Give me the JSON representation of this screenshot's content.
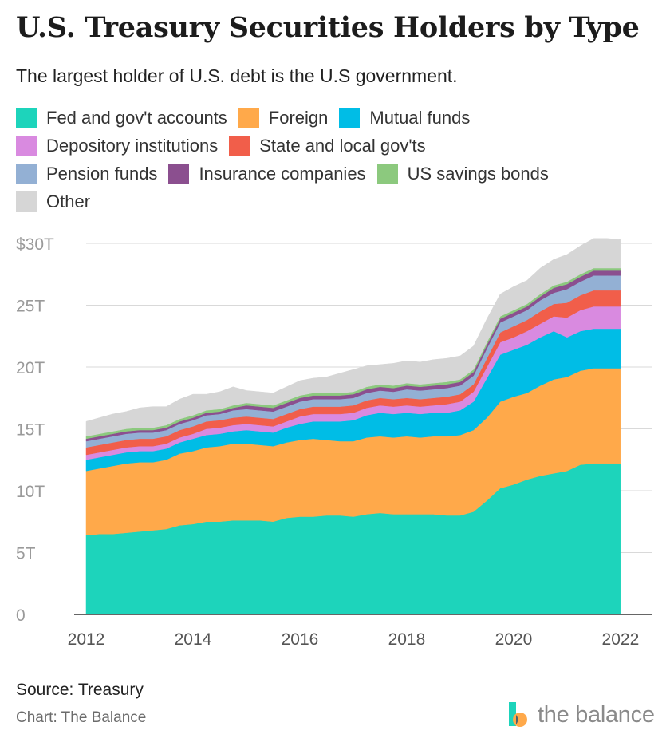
{
  "title": "U.S. Treasury Securities Holders by Type",
  "subtitle": "The largest holder of U.S. debt is the U.S government.",
  "legend": [
    {
      "label": "Fed and gov't accounts",
      "color": "#1dd4bb"
    },
    {
      "label": "Foreign",
      "color": "#ffa94a"
    },
    {
      "label": "Mutual funds",
      "color": "#00bde6"
    },
    {
      "label": "Depository institutions",
      "color": "#d98ae0"
    },
    {
      "label": "State and local gov'ts",
      "color": "#f15e4a"
    },
    {
      "label": "Pension funds",
      "color": "#93b0d4"
    },
    {
      "label": "Insurance companies",
      "color": "#8b4f8f"
    },
    {
      "label": "US savings bonds",
      "color": "#8cc97e"
    },
    {
      "label": "Other",
      "color": "#d6d6d6"
    }
  ],
  "footer": {
    "source": "Source: Treasury",
    "credit": "Chart: The Balance",
    "brand": "the balance"
  },
  "chart_data": {
    "type": "area",
    "stacked": true,
    "x": [
      2012.0,
      2012.25,
      2012.5,
      2012.75,
      2013.0,
      2013.25,
      2013.5,
      2013.75,
      2014.0,
      2014.25,
      2014.5,
      2014.75,
      2015.0,
      2015.25,
      2015.5,
      2015.75,
      2016.0,
      2016.25,
      2016.5,
      2016.75,
      2017.0,
      2017.25,
      2017.5,
      2017.75,
      2018.0,
      2018.25,
      2018.5,
      2018.75,
      2019.0,
      2019.25,
      2019.5,
      2019.75,
      2020.0,
      2020.25,
      2020.5,
      2020.75,
      2021.0,
      2021.25,
      2021.5,
      2021.75,
      2022.0
    ],
    "series": [
      {
        "name": "Fed and gov't accounts",
        "values": [
          6.4,
          6.5,
          6.5,
          6.6,
          6.7,
          6.8,
          6.9,
          7.2,
          7.3,
          7.5,
          7.5,
          7.6,
          7.6,
          7.6,
          7.5,
          7.8,
          7.9,
          7.9,
          8.0,
          8.0,
          7.9,
          8.1,
          8.2,
          8.1,
          8.1,
          8.1,
          8.1,
          8.0,
          8.0,
          8.3,
          9.2,
          10.2,
          10.5,
          10.9,
          11.2,
          11.4,
          11.6,
          12.1,
          12.2,
          12.2,
          12.2
        ]
      },
      {
        "name": "Foreign",
        "values": [
          5.2,
          5.3,
          5.5,
          5.6,
          5.6,
          5.5,
          5.6,
          5.8,
          5.9,
          6.0,
          6.1,
          6.2,
          6.2,
          6.1,
          6.1,
          6.1,
          6.2,
          6.3,
          6.1,
          6.0,
          6.1,
          6.2,
          6.2,
          6.2,
          6.3,
          6.2,
          6.3,
          6.4,
          6.5,
          6.6,
          6.7,
          7.0,
          7.1,
          7.0,
          7.3,
          7.6,
          7.6,
          7.6,
          7.7,
          7.7,
          7.7
        ]
      },
      {
        "name": "Mutual funds",
        "values": [
          0.9,
          0.9,
          0.9,
          0.9,
          0.9,
          0.9,
          0.9,
          0.9,
          1.0,
          1.0,
          1.0,
          1.0,
          1.1,
          1.1,
          1.1,
          1.2,
          1.3,
          1.4,
          1.5,
          1.6,
          1.7,
          1.8,
          1.9,
          1.9,
          1.9,
          1.9,
          1.9,
          1.9,
          2.0,
          2.3,
          3.2,
          3.8,
          3.8,
          3.9,
          3.9,
          3.9,
          3.2,
          3.2,
          3.2,
          3.2,
          3.2
        ]
      },
      {
        "name": "Depository institutions",
        "values": [
          0.4,
          0.4,
          0.4,
          0.4,
          0.4,
          0.4,
          0.4,
          0.4,
          0.4,
          0.5,
          0.5,
          0.5,
          0.5,
          0.5,
          0.5,
          0.5,
          0.6,
          0.6,
          0.6,
          0.6,
          0.6,
          0.6,
          0.6,
          0.6,
          0.6,
          0.6,
          0.6,
          0.7,
          0.7,
          0.8,
          0.9,
          1.0,
          1.0,
          1.1,
          1.1,
          1.2,
          1.6,
          1.7,
          1.8,
          1.8,
          1.8
        ]
      },
      {
        "name": "State and local gov'ts",
        "values": [
          0.6,
          0.6,
          0.6,
          0.6,
          0.6,
          0.6,
          0.6,
          0.6,
          0.6,
          0.6,
          0.6,
          0.6,
          0.6,
          0.6,
          0.6,
          0.6,
          0.6,
          0.6,
          0.6,
          0.6,
          0.6,
          0.6,
          0.6,
          0.6,
          0.6,
          0.6,
          0.6,
          0.6,
          0.6,
          0.6,
          0.7,
          0.8,
          0.9,
          0.9,
          1.0,
          1.0,
          1.2,
          1.2,
          1.3,
          1.3,
          1.3
        ]
      },
      {
        "name": "Pension funds",
        "values": [
          0.5,
          0.5,
          0.5,
          0.5,
          0.5,
          0.5,
          0.5,
          0.5,
          0.5,
          0.5,
          0.5,
          0.6,
          0.6,
          0.6,
          0.6,
          0.6,
          0.6,
          0.6,
          0.6,
          0.6,
          0.6,
          0.6,
          0.6,
          0.6,
          0.7,
          0.7,
          0.7,
          0.7,
          0.7,
          0.7,
          0.8,
          0.8,
          0.8,
          0.8,
          0.9,
          0.9,
          1.1,
          1.1,
          1.2,
          1.2,
          1.2
        ]
      },
      {
        "name": "Insurance companies",
        "values": [
          0.2,
          0.2,
          0.2,
          0.2,
          0.2,
          0.2,
          0.2,
          0.2,
          0.2,
          0.2,
          0.2,
          0.2,
          0.3,
          0.3,
          0.3,
          0.3,
          0.3,
          0.3,
          0.3,
          0.3,
          0.3,
          0.3,
          0.3,
          0.3,
          0.3,
          0.3,
          0.3,
          0.3,
          0.3,
          0.3,
          0.3,
          0.3,
          0.3,
          0.3,
          0.3,
          0.4,
          0.4,
          0.4,
          0.4,
          0.4,
          0.4
        ]
      },
      {
        "name": "US savings bonds",
        "values": [
          0.2,
          0.2,
          0.2,
          0.2,
          0.2,
          0.2,
          0.2,
          0.2,
          0.2,
          0.2,
          0.2,
          0.2,
          0.2,
          0.2,
          0.2,
          0.2,
          0.2,
          0.2,
          0.2,
          0.2,
          0.2,
          0.2,
          0.2,
          0.2,
          0.2,
          0.2,
          0.2,
          0.2,
          0.2,
          0.2,
          0.2,
          0.2,
          0.2,
          0.2,
          0.2,
          0.2,
          0.2,
          0.2,
          0.2,
          0.2,
          0.2
        ]
      },
      {
        "name": "Other",
        "values": [
          1.2,
          1.3,
          1.4,
          1.4,
          1.6,
          1.7,
          1.5,
          1.6,
          1.7,
          1.3,
          1.4,
          1.5,
          1.0,
          1.0,
          1.0,
          1.1,
          1.2,
          1.2,
          1.3,
          1.6,
          1.8,
          1.7,
          1.6,
          1.8,
          1.8,
          1.8,
          1.9,
          1.9,
          1.9,
          1.9,
          1.9,
          1.8,
          1.9,
          1.9,
          2.1,
          2.1,
          2.2,
          2.3,
          2.4,
          2.4,
          2.3
        ]
      }
    ],
    "ylim": [
      0,
      30
    ],
    "xlim": [
      2012,
      2022.3
    ],
    "yticks": [
      0,
      5,
      10,
      15,
      20,
      25,
      30
    ],
    "ytick_labels": [
      "0",
      "5T",
      "10T",
      "15T",
      "20T",
      "25T",
      "$30T"
    ],
    "xticks": [
      2012,
      2014,
      2016,
      2018,
      2020,
      2022
    ],
    "xtick_labels": [
      "2012",
      "2014",
      "2016",
      "2018",
      "2020",
      "2022"
    ],
    "grid": "horizontal",
    "legend_position": "top"
  }
}
